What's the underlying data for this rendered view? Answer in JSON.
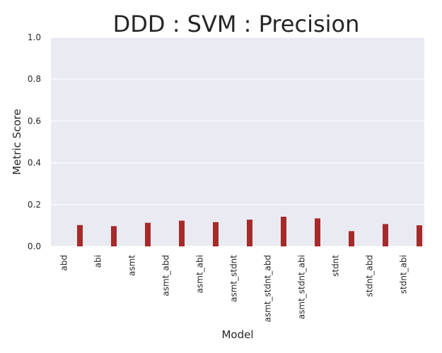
{
  "chart_data": {
    "type": "bar",
    "title": "DDD : SVM : Precision",
    "xlabel": "Model",
    "ylabel": "Metric Score",
    "ylim": [
      0,
      1
    ],
    "yticks": [
      "0.0",
      "0.2",
      "0.4",
      "0.6",
      "0.8",
      "1.0"
    ],
    "grid": true,
    "categories": [
      "abd",
      "abi",
      "asmt",
      "asmt_abd",
      "asmt_abi",
      "asmt_stdnt",
      "asmt_stdnt_abd",
      "asmt_stdnt_abi",
      "stdnt",
      "stdnt_abd",
      "stdnt_abi"
    ],
    "series": [
      {
        "color": "#a52a2a",
        "values": [
          0.102,
          0.097,
          0.113,
          0.123,
          0.116,
          0.128,
          0.142,
          0.134,
          0.073,
          0.107,
          0.101
        ]
      }
    ],
    "colors": {
      "plot_background": "#eaeaf2",
      "grid": "#ffffff",
      "bar": "#a52a2a",
      "text": "#262626"
    }
  }
}
